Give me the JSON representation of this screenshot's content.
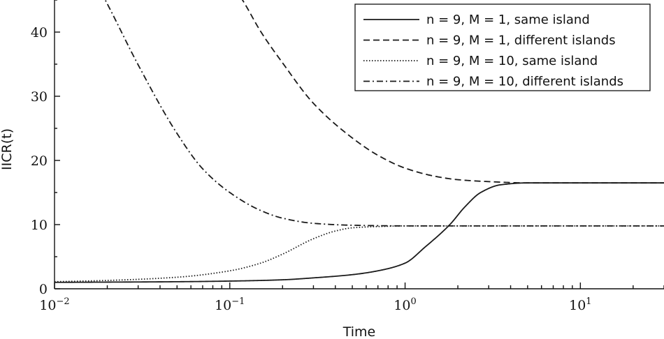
{
  "chart_data": {
    "type": "line",
    "title": "",
    "xlabel": "Time",
    "ylabel": "IICR(t)",
    "xscale": "log",
    "xlim": [
      0.01,
      30
    ],
    "ylim": [
      0,
      45
    ],
    "grid": false,
    "legend_position": "top-right",
    "x_ticks": [
      {
        "value": 0.01,
        "base": "10",
        "exp": "−2"
      },
      {
        "value": 0.1,
        "base": "10",
        "exp": "−1"
      },
      {
        "value": 1,
        "base": "10",
        "exp": "0"
      },
      {
        "value": 10,
        "base": "10",
        "exp": "1"
      }
    ],
    "y_ticks": [
      {
        "value": 0,
        "label": "0"
      },
      {
        "value": 10,
        "label": "10"
      },
      {
        "value": 20,
        "label": "20"
      },
      {
        "value": 30,
        "label": "30"
      },
      {
        "value": 40,
        "label": "40"
      }
    ],
    "series": [
      {
        "name": "n = 9, M = 1, same island",
        "dash": "solid",
        "x": [
          0.01,
          0.05,
          0.1,
          0.2,
          0.3,
          0.5,
          0.7,
          1.0,
          1.3,
          1.8,
          2.2,
          2.7,
          3.5,
          5,
          10,
          30
        ],
        "y": [
          1.0,
          1.1,
          1.2,
          1.4,
          1.7,
          2.2,
          2.8,
          4.0,
          6.5,
          10.0,
          12.8,
          15.0,
          16.2,
          16.5,
          16.5,
          16.5
        ]
      },
      {
        "name": "n = 9, M = 1, different islands",
        "dash": "dashed",
        "x": [
          0.1,
          0.12,
          0.15,
          0.2,
          0.3,
          0.5,
          0.7,
          1.0,
          1.5,
          2.0,
          3.0,
          5,
          10,
          30
        ],
        "y": [
          48,
          44.7,
          40.1,
          35.2,
          28.9,
          23.5,
          20.8,
          18.8,
          17.5,
          17.0,
          16.7,
          16.5,
          16.5,
          16.5
        ]
      },
      {
        "name": "n = 9, M = 10, same island",
        "dash": "dotted",
        "x": [
          0.01,
          0.02,
          0.05,
          0.1,
          0.15,
          0.2,
          0.3,
          0.4,
          0.5,
          0.7,
          1.0,
          30
        ],
        "y": [
          1.1,
          1.3,
          1.8,
          2.8,
          4.0,
          5.4,
          7.8,
          9.0,
          9.5,
          9.7,
          9.8,
          9.8
        ]
      },
      {
        "name": "n = 9, M = 10, different islands",
        "dash": "dashdot",
        "x": [
          0.017,
          0.02,
          0.03,
          0.05,
          0.07,
          0.1,
          0.15,
          0.2,
          0.3,
          0.5,
          1.0,
          30
        ],
        "y": [
          48,
          44.4,
          34.9,
          24.2,
          18.7,
          15.0,
          12.2,
          11.0,
          10.2,
          9.9,
          9.8,
          9.8
        ]
      }
    ]
  }
}
